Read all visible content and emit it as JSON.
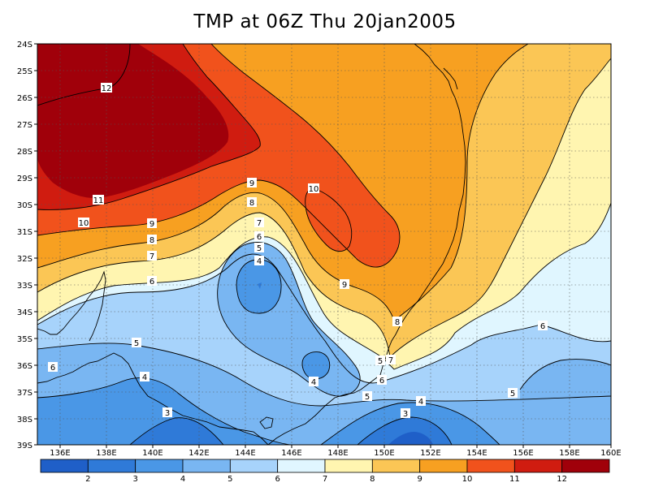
{
  "title": "TMP at 06Z Thu 20jan2005",
  "map": {
    "lat_ticks": [
      "24S",
      "25S",
      "26S",
      "27S",
      "28S",
      "29S",
      "30S",
      "31S",
      "32S",
      "33S",
      "34S",
      "35S",
      "36S",
      "37S",
      "38S",
      "39S"
    ],
    "lon_ticks": [
      "136E",
      "138E",
      "140E",
      "142E",
      "144E",
      "146E",
      "148E",
      "150E",
      "152E",
      "154E",
      "156E",
      "158E",
      "160E"
    ],
    "lat_range": [
      -39,
      -24
    ],
    "lon_range": [
      135.2,
      160
    ],
    "contour_labels": [
      "12",
      "11",
      "10",
      "9",
      "8",
      "7",
      "6",
      "5",
      "4",
      "3",
      "10",
      "9",
      "8",
      "9",
      "8",
      "7",
      "6",
      "5",
      "4",
      "4",
      "7",
      "6",
      "5",
      "4",
      "3",
      "6",
      "5",
      "6",
      "5"
    ]
  },
  "colorbar": {
    "labels": [
      "2",
      "3",
      "4",
      "5",
      "6",
      "7",
      "8",
      "9",
      "10",
      "11",
      "12"
    ],
    "colors": [
      "#1f5fc8",
      "#2f7ad8",
      "#4a97e6",
      "#79b6f2",
      "#a7d3fb",
      "#e0f6ff",
      "#fff5b0",
      "#fbc655",
      "#f7a021",
      "#f1521c",
      "#d01c10",
      "#a0000a"
    ]
  }
}
